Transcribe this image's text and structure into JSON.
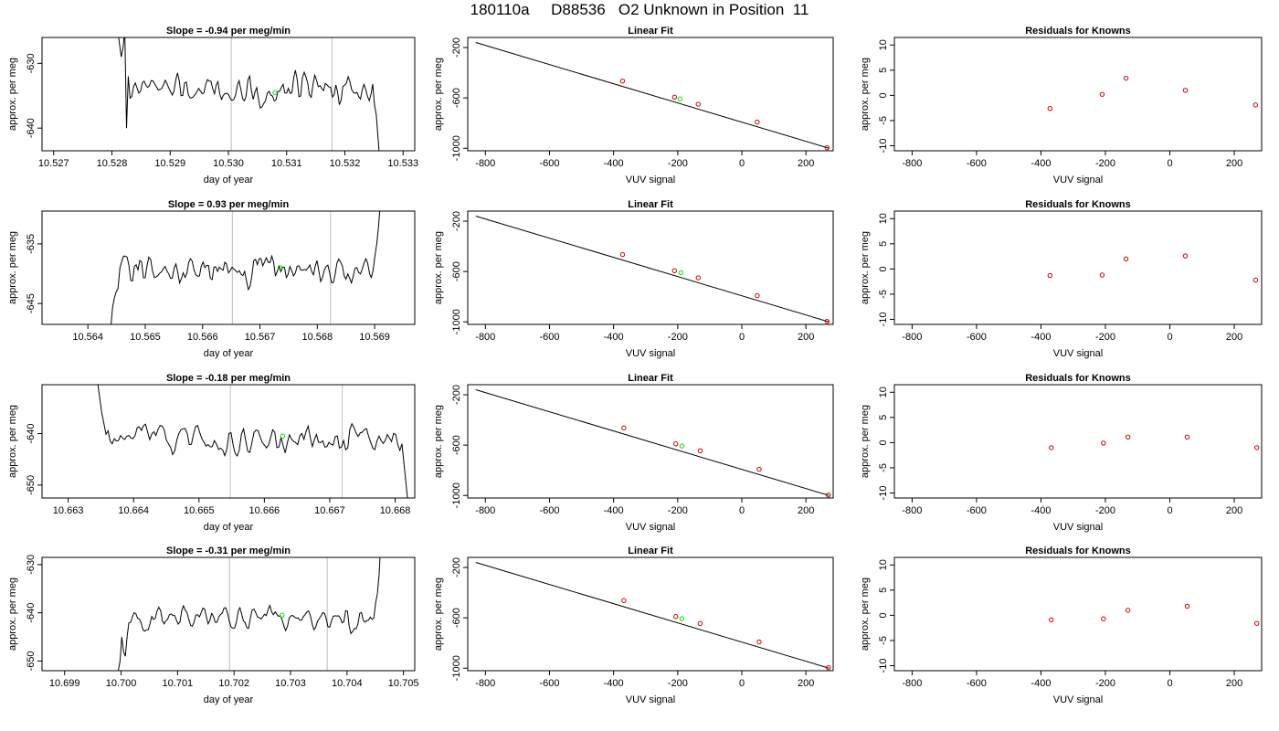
{
  "title": "180110a     D88536   O2 Unknown in Position  11",
  "colors": {
    "series": "#000000",
    "known_point": "#cc0000",
    "unknown_point": "#00dd00",
    "marker_line": "#c8c8c8"
  },
  "chart_data": [
    {
      "type": "line",
      "panel": "time-series",
      "row": 1,
      "title": "Slope =  -0.94  per meg/min",
      "xlabel": "day of year",
      "ylabel": "approx. per meg",
      "xlim": [
        10.5268,
        10.5332
      ],
      "ylim": [
        -643.5,
        -626.0
      ],
      "xticks": [
        10.527,
        10.528,
        10.529,
        10.53,
        10.531,
        10.532,
        10.533
      ],
      "xtick_labels": [
        "10.527",
        "10.528",
        "10.529",
        "10.530",
        "10.531",
        "10.532",
        "10.533"
      ],
      "yticks": [
        -630,
        -640
      ],
      "ytick_labels": [
        "-630",
        "-640"
      ],
      "vlines": [
        10.53005,
        10.53178
      ],
      "unknown_point": [
        10.5308,
        -634.5
      ],
      "x_start": 10.5281,
      "x_end": 10.5326,
      "mean": -634.0,
      "amp": 1.8,
      "seed": 11,
      "start_values": [
        -625.0,
        -627.0,
        -629.0,
        -627.5,
        -625.0,
        -640.0,
        -632.0
      ],
      "end_values": [
        -636.5,
        -638.0,
        -641.5,
        -645.0
      ]
    },
    {
      "type": "line",
      "panel": "linear-fit",
      "row": 1,
      "title": "Linear Fit",
      "xlabel": "VUV signal",
      "ylabel": "approx. per meg",
      "xlim": [
        -855,
        285
      ],
      "ylim": [
        -1020,
        -120
      ],
      "xticks": [
        -800,
        -600,
        -400,
        -200,
        0,
        200
      ],
      "xtick_labels": [
        "-800",
        "-600",
        "-400",
        "-200",
        "0",
        "200"
      ],
      "yticks": [
        -200,
        -600,
        -1000
      ],
      "ytick_labels": [
        "-200",
        "-600",
        "-1000"
      ],
      "fit_line": {
        "x": [
          -830,
          272
        ],
        "y": [
          -160,
          -1000
        ]
      },
      "known_points": {
        "x": [
          -372,
          -210,
          -136,
          48,
          266
        ],
        "y": [
          -466,
          -594,
          -650,
          -792,
          -996
        ]
      },
      "unknown_point": [
        -193,
        -608
      ]
    },
    {
      "type": "scatter",
      "panel": "residuals",
      "row": 1,
      "title": "Residuals for Knowns",
      "xlabel": "VUV signal",
      "ylabel": "approx. per meg",
      "xlim": [
        -855,
        285
      ],
      "ylim": [
        -11,
        11.5
      ],
      "xticks": [
        -800,
        -600,
        -400,
        -200,
        0,
        200
      ],
      "xtick_labels": [
        "-800",
        "-600",
        "-400",
        "-200",
        "0",
        "200"
      ],
      "yticks": [
        10,
        5,
        0,
        -5,
        -10
      ],
      "ytick_labels": [
        "10",
        "5",
        "0",
        "-5",
        "-10"
      ],
      "x": [
        -372,
        -210,
        -136,
        48,
        266
      ],
      "y": [
        -2.6,
        0.2,
        3.4,
        1.0,
        -1.9
      ]
    },
    {
      "type": "line",
      "panel": "time-series",
      "row": 2,
      "title": "Slope =  0.93  per meg/min",
      "xlabel": "day of year",
      "ylabel": "approx. per meg",
      "xlim": [
        10.5632,
        10.5697
      ],
      "ylim": [
        -648.5,
        -629.5
      ],
      "xticks": [
        10.564,
        10.565,
        10.566,
        10.567,
        10.568,
        10.569
      ],
      "xtick_labels": [
        "10.564",
        "10.565",
        "10.566",
        "10.567",
        "10.568",
        "10.569"
      ],
      "yticks": [
        -635,
        -645
      ],
      "ytick_labels": [
        "-635",
        "-645"
      ],
      "vlines": [
        10.56652,
        10.56823
      ],
      "unknown_point": [
        10.56735,
        -639.0
      ],
      "x_start": 10.5644,
      "x_end": 10.5691,
      "mean": -639.5,
      "amp": 1.8,
      "seed": 23,
      "start_values": [
        -649.0,
        -645.5,
        -644.0,
        -643.0,
        -642.5
      ],
      "end_values": [
        -637.0,
        -635.0,
        -632.0,
        -628.0
      ]
    },
    {
      "type": "line",
      "panel": "linear-fit",
      "row": 2,
      "title": "Linear Fit",
      "xlabel": "VUV signal",
      "ylabel": "approx. per meg",
      "xlim": [
        -855,
        285
      ],
      "ylim": [
        -1020,
        -120
      ],
      "xticks": [
        -800,
        -600,
        -400,
        -200,
        0,
        200
      ],
      "xtick_labels": [
        "-800",
        "-600",
        "-400",
        "-200",
        "0",
        "200"
      ],
      "yticks": [
        -200,
        -600,
        -1000
      ],
      "ytick_labels": [
        "-200",
        "-600",
        "-1000"
      ],
      "fit_line": {
        "x": [
          -830,
          272
        ],
        "y": [
          -160,
          -1000
        ]
      },
      "known_points": {
        "x": [
          -372,
          -210,
          -136,
          48,
          266
        ],
        "y": [
          -466,
          -594,
          -650,
          -792,
          -996
        ]
      },
      "unknown_point": [
        -190,
        -610
      ]
    },
    {
      "type": "scatter",
      "panel": "residuals",
      "row": 2,
      "title": "Residuals for Knowns",
      "xlabel": "VUV signal",
      "ylabel": "approx. per meg",
      "xlim": [
        -855,
        285
      ],
      "ylim": [
        -11,
        11.5
      ],
      "xticks": [
        -800,
        -600,
        -400,
        -200,
        0,
        200
      ],
      "xtick_labels": [
        "-800",
        "-600",
        "-400",
        "-200",
        "0",
        "200"
      ],
      "yticks": [
        10,
        5,
        0,
        -5,
        -10
      ],
      "ytick_labels": [
        "10",
        "5",
        "0",
        "-5",
        "-10"
      ],
      "x": [
        -372,
        -210,
        -136,
        48,
        266
      ],
      "y": [
        -1.3,
        -1.2,
        2.0,
        2.6,
        -2.2
      ]
    },
    {
      "type": "line",
      "panel": "time-series",
      "row": 3,
      "title": "Slope =  -0.18  per meg/min",
      "xlabel": "day of year",
      "ylabel": "approx. per meg",
      "xlim": [
        10.6626,
        10.6683
      ],
      "ylim": [
        -652.5,
        -630.5
      ],
      "xticks": [
        10.663,
        10.664,
        10.665,
        10.666,
        10.667,
        10.668
      ],
      "xtick_labels": [
        "10.663",
        "10.664",
        "10.665",
        "10.666",
        "10.667",
        "10.668"
      ],
      "yticks": [
        -640,
        -650
      ],
      "ytick_labels": [
        "-640",
        "-650"
      ],
      "vlines": [
        10.66548,
        10.66719
      ],
      "unknown_point": [
        10.66628,
        -640.5
      ],
      "x_start": 10.66345,
      "x_end": 10.6682,
      "mean": -641.0,
      "amp": 2.1,
      "seed": 37,
      "start_values": [
        -630.0,
        -633.0,
        -636.0,
        -638.0
      ],
      "end_values": [
        -642.0,
        -646.0,
        -650.0,
        -654.0
      ]
    },
    {
      "type": "line",
      "panel": "linear-fit",
      "row": 3,
      "title": "Linear Fit",
      "xlabel": "VUV signal",
      "ylabel": "approx. per meg",
      "xlim": [
        -855,
        285
      ],
      "ylim": [
        -1020,
        -120
      ],
      "xticks": [
        -800,
        -600,
        -400,
        -200,
        0,
        200
      ],
      "xtick_labels": [
        "-800",
        "-600",
        "-400",
        "-200",
        "0",
        "200"
      ],
      "yticks": [
        -200,
        -600,
        -1000
      ],
      "ytick_labels": [
        "-200",
        "-600",
        "-1000"
      ],
      "fit_line": {
        "x": [
          -830,
          272
        ],
        "y": [
          -160,
          -1000
        ]
      },
      "known_points": {
        "x": [
          -368,
          -206,
          -130,
          54,
          270
        ],
        "y": [
          -463,
          -590,
          -645,
          -792,
          -996
        ]
      },
      "unknown_point": [
        -187,
        -607
      ]
    },
    {
      "type": "scatter",
      "panel": "residuals",
      "row": 3,
      "title": "Residuals for Knowns",
      "xlabel": "VUV signal",
      "ylabel": "approx. per meg",
      "xlim": [
        -855,
        285
      ],
      "ylim": [
        -11,
        11.5
      ],
      "xticks": [
        -800,
        -600,
        -400,
        -200,
        0,
        200
      ],
      "xtick_labels": [
        "-800",
        "-600",
        "-400",
        "-200",
        "0",
        "200"
      ],
      "yticks": [
        10,
        5,
        0,
        -5,
        -10
      ],
      "ytick_labels": [
        "10",
        "5",
        "0",
        "-5",
        "-10"
      ],
      "x": [
        -368,
        -206,
        -130,
        54,
        270
      ],
      "y": [
        -1.0,
        -0.1,
        1.1,
        1.1,
        -1.0
      ]
    },
    {
      "type": "line",
      "panel": "time-series",
      "row": 4,
      "title": "Slope =  -0.31  per meg/min",
      "xlabel": "day of year",
      "ylabel": "approx. per meg",
      "xlim": [
        10.6986,
        10.7052
      ],
      "ylim": [
        -652.0,
        -628.5
      ],
      "xticks": [
        10.699,
        10.7,
        10.701,
        10.702,
        10.703,
        10.704,
        10.705
      ],
      "xtick_labels": [
        "10.699",
        "10.700",
        "10.701",
        "10.702",
        "10.703",
        "10.704",
        "10.705"
      ],
      "yticks": [
        -630,
        -640,
        -650
      ],
      "ytick_labels": [
        "-630",
        "-640",
        "-650"
      ],
      "vlines": [
        10.70192,
        10.70365
      ],
      "unknown_point": [
        10.70285,
        -640.5
      ],
      "x_start": 10.69995,
      "x_end": 10.7046,
      "mean": -641.0,
      "amp": 1.9,
      "seed": 53,
      "start_values": [
        -652.0,
        -650.0,
        -645.0,
        -648.0,
        -649.0,
        -645.0
      ],
      "end_values": [
        -638.0,
        -636.0,
        -632.0,
        -625.0
      ]
    },
    {
      "type": "line",
      "panel": "linear-fit",
      "row": 4,
      "title": "Linear Fit",
      "xlabel": "VUV signal",
      "ylabel": "approx. per meg",
      "xlim": [
        -855,
        285
      ],
      "ylim": [
        -1020,
        -120
      ],
      "xticks": [
        -800,
        -600,
        -400,
        -200,
        0,
        200
      ],
      "xtick_labels": [
        "-800",
        "-600",
        "-400",
        "-200",
        "0",
        "200"
      ],
      "yticks": [
        -200,
        -600,
        -1000
      ],
      "ytick_labels": [
        "-200",
        "-600",
        "-1000"
      ],
      "fit_line": {
        "x": [
          -830,
          272
        ],
        "y": [
          -160,
          -1000
        ]
      },
      "known_points": {
        "x": [
          -368,
          -206,
          -130,
          54,
          270
        ],
        "y": [
          -463,
          -590,
          -645,
          -792,
          -996
        ]
      },
      "unknown_point": [
        -187,
        -607
      ]
    },
    {
      "type": "scatter",
      "panel": "residuals",
      "row": 4,
      "title": "Residuals for Knowns",
      "xlabel": "VUV signal",
      "ylabel": "approx. per meg",
      "xlim": [
        -855,
        285
      ],
      "ylim": [
        -11,
        11.5
      ],
      "xticks": [
        -800,
        -600,
        -400,
        -200,
        0,
        200
      ],
      "xtick_labels": [
        "-800",
        "-600",
        "-400",
        "-200",
        "0",
        "200"
      ],
      "yticks": [
        10,
        5,
        0,
        -5,
        -10
      ],
      "ytick_labels": [
        "10",
        "5",
        "0",
        "-5",
        "-10"
      ],
      "x": [
        -368,
        -206,
        -130,
        54,
        270
      ],
      "y": [
        -0.9,
        -0.7,
        1.0,
        1.8,
        -1.6
      ]
    }
  ]
}
